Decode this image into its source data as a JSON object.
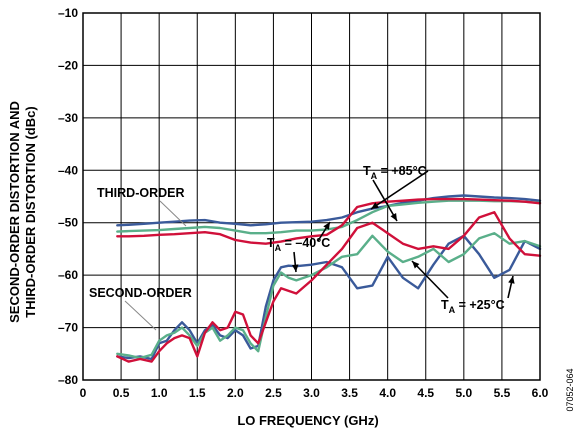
{
  "chart_data": {
    "type": "line",
    "xlabel": "LO FREQUENCY (GHz)",
    "ylabel_lines": [
      "SECOND-ORDER DISTORTION AND",
      "THIRD-ORDER DISTORTION (dBc)"
    ],
    "xlim": [
      0,
      6.0
    ],
    "ylim": [
      -80,
      -10
    ],
    "x_ticks": [
      0,
      0.5,
      1.0,
      1.5,
      2.0,
      2.5,
      3.0,
      3.5,
      4.0,
      4.5,
      5.0,
      5.5,
      6.0
    ],
    "x_tick_labels": [
      "0",
      "0.5",
      "1.0",
      "1.5",
      "2.0",
      "2.5",
      "3.0",
      "3.5",
      "4.0",
      "4.5",
      "5.0",
      "5.5",
      "6.0"
    ],
    "y_ticks": [
      -10,
      -20,
      -30,
      -40,
      -50,
      -60,
      -70,
      -80
    ],
    "y_tick_labels": [
      "–10",
      "–20",
      "–30",
      "–40",
      "–50",
      "–60",
      "–70",
      "–80"
    ],
    "grid": true,
    "figure_id": "07052-064",
    "annotations": {
      "third_order": "THIRD-ORDER",
      "second_order": "SECOND-ORDER",
      "ta_prefix": "T",
      "ta_sub": "A",
      "ta_minus40": " = –40°C",
      "ta_plus85": " = +85°C",
      "ta_plus25": " = +25°C"
    },
    "series": [
      {
        "color": "#3a5a9a",
        "x": [
          0.45,
          0.6,
          0.8,
          1.0,
          1.2,
          1.4,
          1.6,
          1.8,
          2.0,
          2.2,
          2.4,
          2.6,
          2.8,
          3.0,
          3.2,
          3.4,
          3.6,
          3.8,
          4.0,
          4.2,
          4.4,
          4.6,
          4.8,
          5.0,
          5.2,
          5.4,
          5.6,
          5.8,
          6.0
        ],
        "y": [
          -50.5,
          -50.4,
          -50.2,
          -50.0,
          -49.8,
          -49.6,
          -49.5,
          -50.0,
          -50.2,
          -50.5,
          -50.3,
          -50.0,
          -49.9,
          -49.8,
          -49.5,
          -49.0,
          -48.0,
          -47.3,
          -46.8,
          -46.2,
          -45.8,
          -45.3,
          -45.0,
          -44.8,
          -45.0,
          -45.2,
          -45.3,
          -45.5,
          -45.8
        ]
      },
      {
        "color": "#5aaf8a",
        "x": [
          0.45,
          0.6,
          0.8,
          1.0,
          1.2,
          1.4,
          1.6,
          1.8,
          2.0,
          2.2,
          2.4,
          2.6,
          2.8,
          3.0,
          3.2,
          3.4,
          3.6,
          3.8,
          4.0,
          4.2,
          4.4,
          4.6,
          4.8,
          5.0,
          5.2,
          5.4,
          5.6,
          5.8,
          6.0
        ],
        "y": [
          -51.7,
          -51.6,
          -51.5,
          -51.4,
          -51.2,
          -51.0,
          -50.8,
          -51.0,
          -51.5,
          -52.0,
          -52.0,
          -51.8,
          -51.5,
          -51.5,
          -51.3,
          -50.8,
          -49.5,
          -48.0,
          -46.8,
          -46.5,
          -46.2,
          -46.0,
          -45.8,
          -45.8,
          -45.8,
          -45.9,
          -45.9,
          -46.0,
          -46.2
        ]
      },
      {
        "color": "#d0103a",
        "x": [
          0.45,
          0.6,
          0.8,
          1.0,
          1.2,
          1.4,
          1.6,
          1.8,
          2.0,
          2.2,
          2.4,
          2.6,
          2.8,
          3.0,
          3.2,
          3.4,
          3.6,
          3.8,
          4.0,
          4.2,
          4.4,
          4.6,
          4.8,
          5.0,
          5.2,
          5.4,
          5.6,
          5.8,
          6.0
        ],
        "y": [
          -52.6,
          -52.6,
          -52.5,
          -52.3,
          -52.2,
          -52.0,
          -51.8,
          -52.2,
          -53.3,
          -53.8,
          -54.0,
          -53.6,
          -53.0,
          -52.6,
          -52.3,
          -50.5,
          -47.0,
          -46.3,
          -46.0,
          -45.8,
          -45.6,
          -45.5,
          -45.5,
          -45.5,
          -45.6,
          -45.7,
          -45.8,
          -46.0,
          -46.3
        ]
      },
      {
        "color": "#3a5a9a",
        "x": [
          0.45,
          0.6,
          0.75,
          0.9,
          1.0,
          1.1,
          1.2,
          1.3,
          1.4,
          1.5,
          1.6,
          1.7,
          1.8,
          1.9,
          2.0,
          2.1,
          2.2,
          2.3,
          2.4,
          2.5,
          2.6,
          2.7,
          2.8,
          3.0,
          3.2,
          3.4,
          3.6,
          3.8,
          4.0,
          4.2,
          4.4,
          4.6,
          4.8,
          5.0,
          5.2,
          5.4,
          5.6,
          5.8,
          6.0
        ],
        "y": [
          -75.5,
          -75.8,
          -75.5,
          -76.0,
          -73.0,
          -72.5,
          -70.5,
          -69.0,
          -70.5,
          -73.0,
          -70.5,
          -69.5,
          -71.5,
          -72.0,
          -70.5,
          -71.5,
          -74.0,
          -73.5,
          -66.0,
          -61.0,
          -58.5,
          -58.2,
          -58.3,
          -58.0,
          -57.5,
          -58.5,
          -62.5,
          -62.0,
          -56.5,
          -60.5,
          -62.5,
          -58.0,
          -54.0,
          -52.5,
          -56.0,
          -60.5,
          -59.0,
          -53.5,
          -55.0
        ]
      },
      {
        "color": "#5aaf8a",
        "x": [
          0.45,
          0.6,
          0.75,
          0.9,
          1.0,
          1.1,
          1.2,
          1.3,
          1.4,
          1.5,
          1.6,
          1.7,
          1.8,
          1.9,
          2.0,
          2.1,
          2.2,
          2.3,
          2.4,
          2.5,
          2.6,
          2.7,
          2.8,
          3.0,
          3.2,
          3.4,
          3.6,
          3.8,
          4.0,
          4.2,
          4.4,
          4.6,
          4.8,
          5.0,
          5.2,
          5.4,
          5.6,
          5.8,
          6.0
        ],
        "y": [
          -75.0,
          -75.3,
          -75.8,
          -75.2,
          -72.5,
          -71.5,
          -71.0,
          -70.0,
          -71.5,
          -73.5,
          -71.0,
          -70.0,
          -72.5,
          -71.5,
          -70.0,
          -70.5,
          -73.0,
          -74.5,
          -68.0,
          -62.0,
          -59.5,
          -60.5,
          -61.0,
          -60.0,
          -58.5,
          -56.5,
          -56.0,
          -52.5,
          -55.5,
          -57.5,
          -56.5,
          -55.0,
          -57.5,
          -56.0,
          -53.0,
          -52.0,
          -54.0,
          -53.5,
          -54.5
        ]
      },
      {
        "color": "#d0103a",
        "x": [
          0.45,
          0.6,
          0.75,
          0.9,
          1.0,
          1.1,
          1.2,
          1.3,
          1.4,
          1.5,
          1.6,
          1.7,
          1.8,
          1.9,
          2.0,
          2.1,
          2.2,
          2.3,
          2.4,
          2.5,
          2.6,
          2.7,
          2.8,
          3.0,
          3.2,
          3.4,
          3.6,
          3.8,
          4.0,
          4.2,
          4.4,
          4.6,
          4.8,
          5.0,
          5.2,
          5.4,
          5.6,
          5.8,
          6.0
        ],
        "y": [
          -75.5,
          -76.5,
          -76.0,
          -76.5,
          -74.5,
          -73.0,
          -72.0,
          -71.5,
          -72.0,
          -75.5,
          -71.0,
          -69.0,
          -70.5,
          -70.0,
          -67.0,
          -67.5,
          -71.5,
          -73.0,
          -69.0,
          -65.0,
          -62.5,
          -63.0,
          -63.5,
          -61.0,
          -58.0,
          -55.0,
          -51.0,
          -50.0,
          -52.0,
          -54.0,
          -55.0,
          -54.5,
          -55.0,
          -52.5,
          -49.0,
          -48.0,
          -53.0,
          -56.0,
          -56.3
        ]
      }
    ]
  }
}
